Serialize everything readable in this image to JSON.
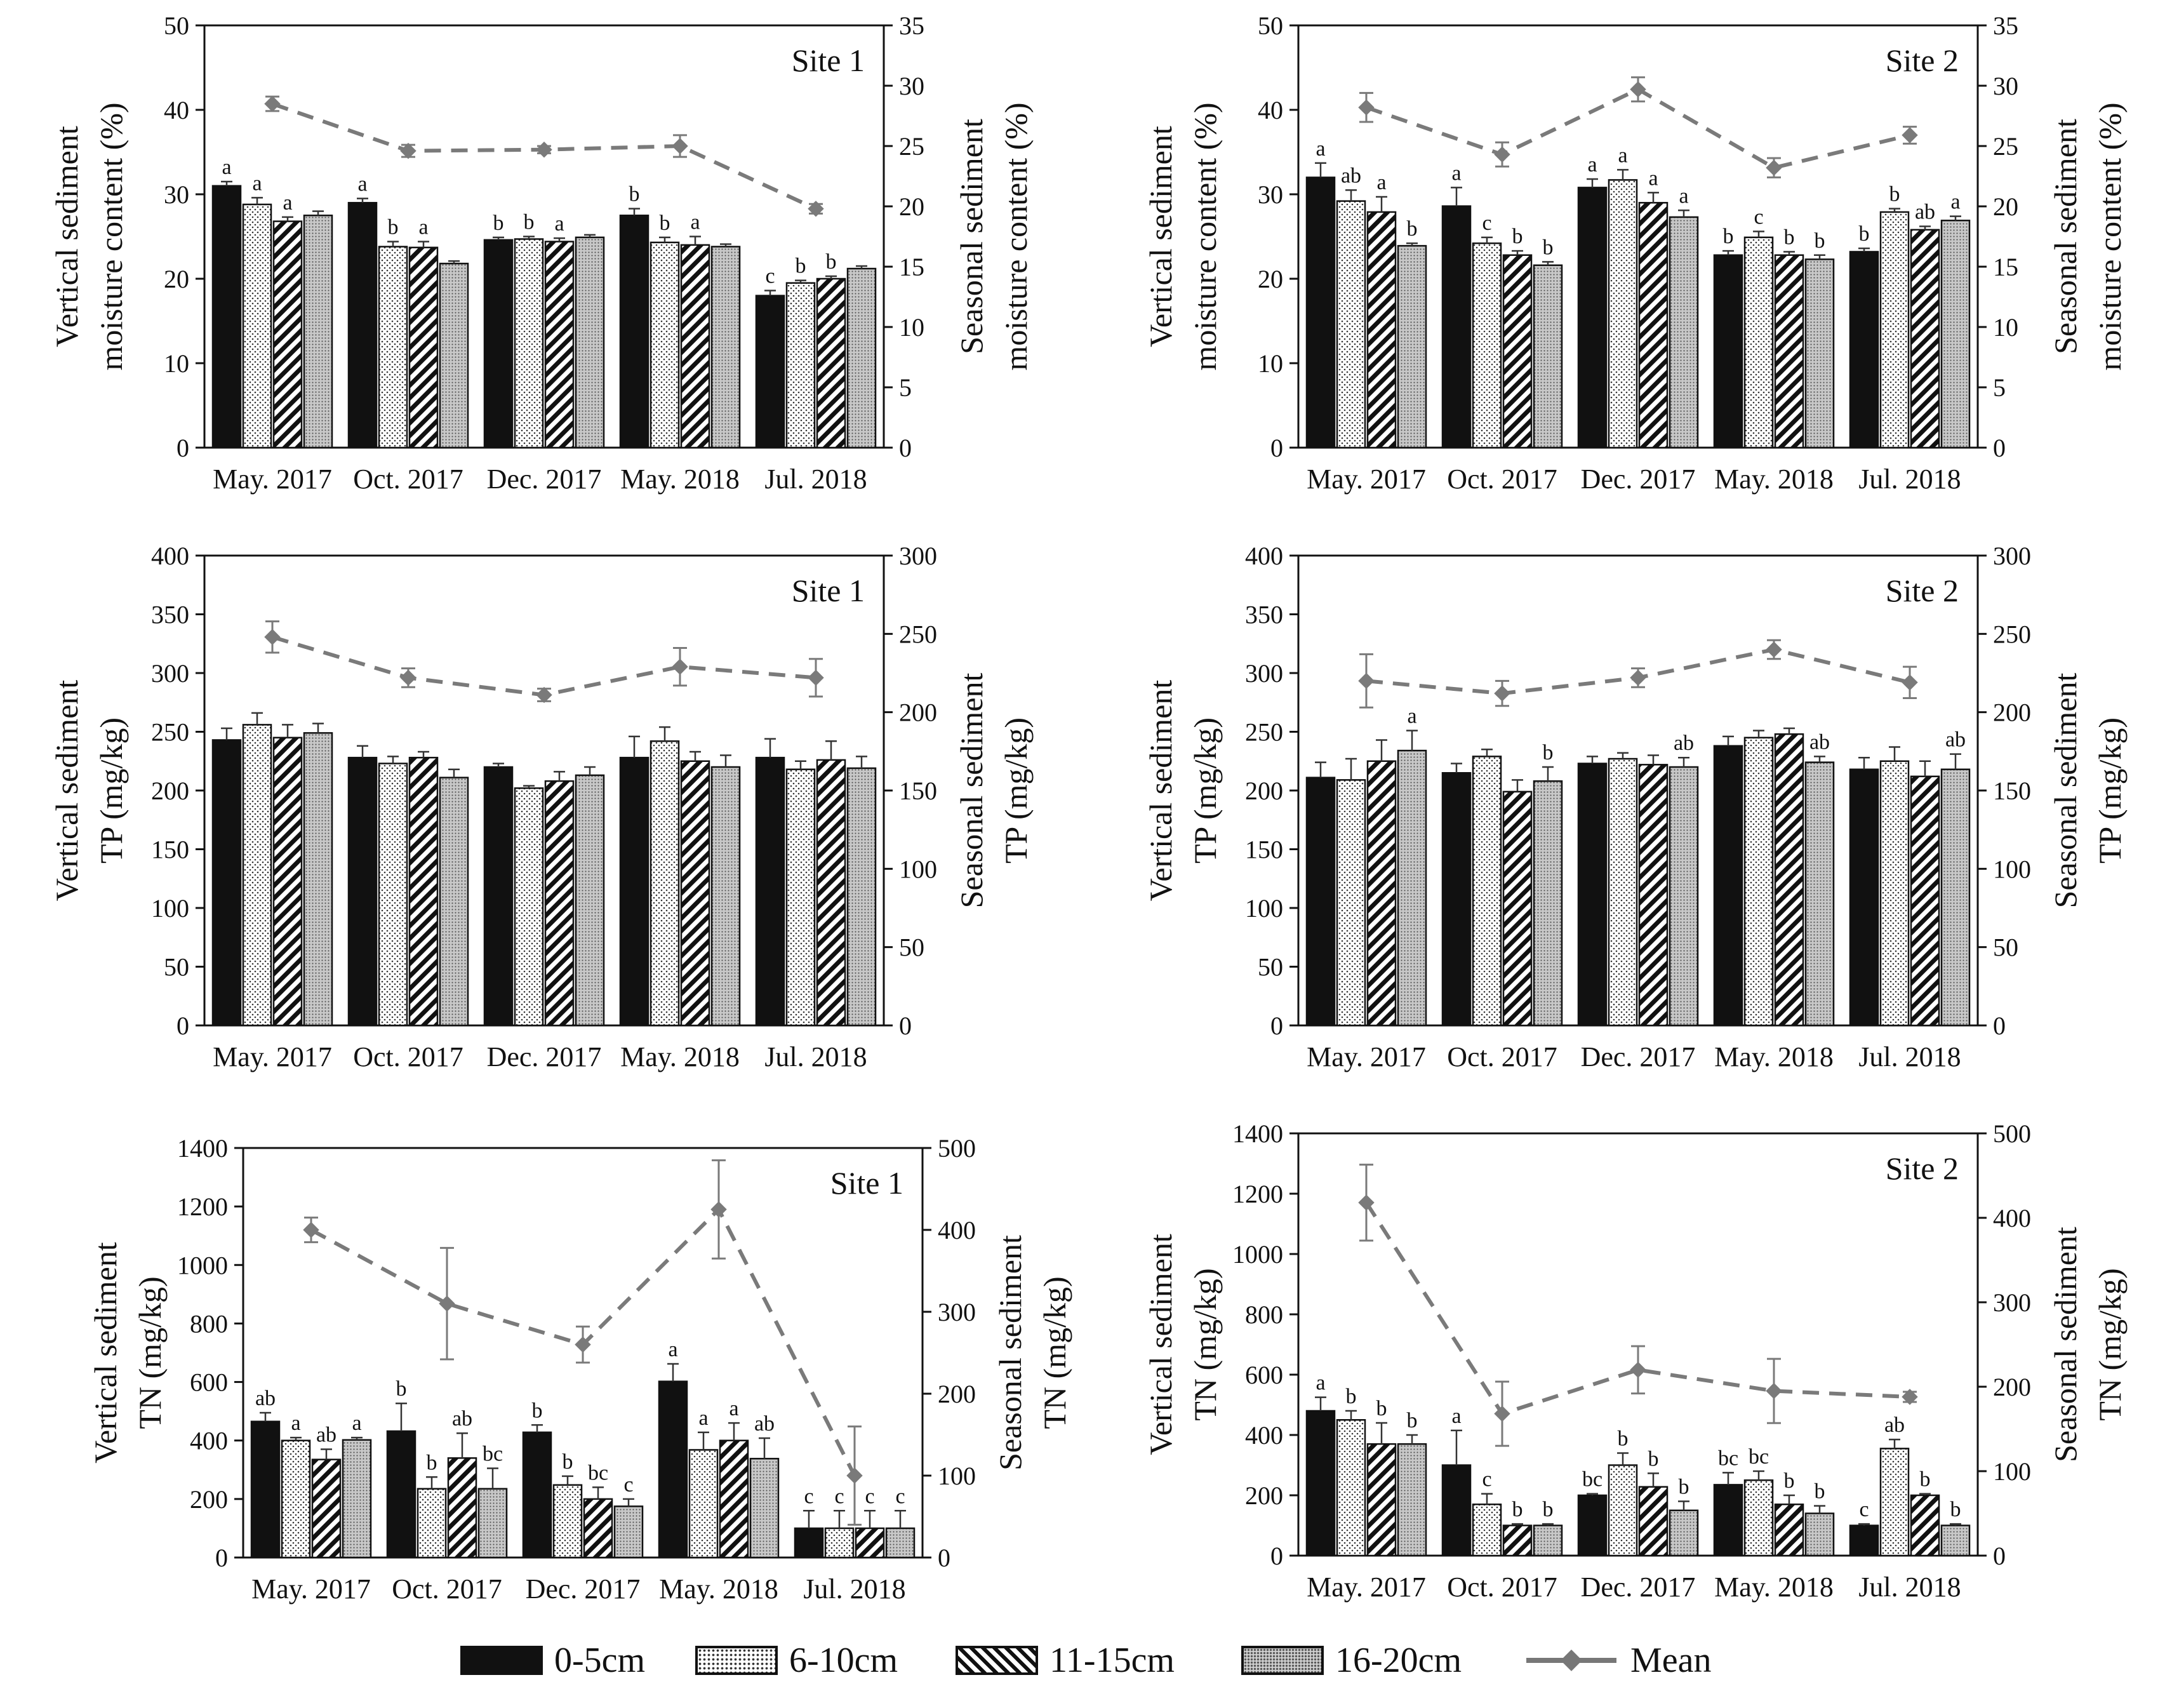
{
  "legend": {
    "items": [
      {
        "label": "0-5cm",
        "style": "solid"
      },
      {
        "label": "6-10cm",
        "style": "dot"
      },
      {
        "label": "11-15cm",
        "style": "hatch"
      },
      {
        "label": "16-20cm",
        "style": "grid"
      },
      {
        "label": "Mean",
        "style": "line"
      }
    ]
  },
  "chart_data": [
    {
      "id": "moisture-site1",
      "type": "bar",
      "title": "Site 1",
      "ylabel": [
        "Vertical sediment",
        "moisture content (%)"
      ],
      "y2label": [
        "Seasonal sediment",
        "moisture content (%)"
      ],
      "ylim": [
        0,
        50
      ],
      "yticks": [
        0,
        10,
        20,
        30,
        40,
        50
      ],
      "y2lim": [
        0,
        35
      ],
      "y2ticks": [
        0,
        5,
        10,
        15,
        20,
        25,
        30,
        35
      ],
      "categories": [
        "May. 2017",
        "Oct. 2017",
        "Dec. 2017",
        "May. 2018",
        "Jul. 2018"
      ],
      "series": [
        {
          "name": "0-5cm",
          "values": [
            31,
            29,
            24.6,
            27.5,
            18
          ],
          "errors": [
            0.5,
            0.5,
            0.3,
            0.8,
            0.6
          ],
          "letters": [
            "a",
            "a",
            "b",
            "b",
            "c"
          ]
        },
        {
          "name": "6-10cm",
          "values": [
            28.8,
            23.8,
            24.7,
            24.3,
            19.5
          ],
          "errors": [
            0.8,
            0.6,
            0.3,
            0.6,
            0.3
          ],
          "letters": [
            "a",
            "b",
            "b",
            "b",
            "b"
          ]
        },
        {
          "name": "11-15cm",
          "values": [
            26.8,
            23.7,
            24.4,
            24,
            20
          ],
          "errors": [
            0.5,
            0.7,
            0.4,
            1,
            0.3
          ],
          "letters": [
            "a",
            "a",
            "a",
            "a",
            "b"
          ]
        },
        {
          "name": "16-20cm",
          "values": [
            27.5,
            21.8,
            24.9,
            23.8,
            21.2
          ],
          "errors": [
            0.5,
            0.3,
            0.3,
            0.3,
            0.3
          ],
          "letters": [
            "",
            "",
            "",
            "",
            ""
          ]
        }
      ],
      "mean": {
        "values": [
          28.5,
          24.6,
          24.7,
          25,
          19.8
        ],
        "errors": [
          0.6,
          0.5,
          0.3,
          0.9,
          0.4
        ]
      }
    },
    {
      "id": "moisture-site2",
      "type": "bar",
      "title": "Site 2",
      "ylabel": [
        "Vertical sediment",
        "moisture content (%)"
      ],
      "y2label": [
        "Seasonal sediment",
        "moisture content (%)"
      ],
      "ylim": [
        0,
        50
      ],
      "yticks": [
        0,
        10,
        20,
        30,
        40,
        50
      ],
      "y2lim": [
        0,
        35
      ],
      "y2ticks": [
        0,
        5,
        10,
        15,
        20,
        25,
        30,
        35
      ],
      "categories": [
        "May. 2017",
        "Oct. 2017",
        "Dec. 2017",
        "May. 2018",
        "Jul. 2018"
      ],
      "series": [
        {
          "name": "0-5cm",
          "values": [
            32,
            28.6,
            30.8,
            22.8,
            23.2
          ],
          "errors": [
            1.7,
            2.2,
            1,
            0.5,
            0.4
          ],
          "letters": [
            "a",
            "a",
            "a",
            "b",
            "b"
          ]
        },
        {
          "name": "6-10cm",
          "values": [
            29.2,
            24.2,
            31.7,
            24.9,
            27.9
          ],
          "errors": [
            1.3,
            0.7,
            1.2,
            0.7,
            0.4
          ],
          "letters": [
            "ab",
            "c",
            "a",
            "c",
            "b"
          ]
        },
        {
          "name": "11-15cm",
          "values": [
            27.9,
            22.8,
            29,
            22.8,
            25.8
          ],
          "errors": [
            1.8,
            0.5,
            1.2,
            0.4,
            0.4
          ],
          "letters": [
            "a",
            "b",
            "a",
            "b",
            "ab"
          ]
        },
        {
          "name": "16-20cm",
          "values": [
            23.9,
            21.6,
            27.3,
            22.3,
            26.9
          ],
          "errors": [
            0.3,
            0.4,
            0.8,
            0.5,
            0.5
          ],
          "letters": [
            "b",
            "b",
            "a",
            "b",
            "a"
          ]
        }
      ],
      "mean": {
        "values": [
          28.2,
          24.3,
          29.7,
          23.2,
          25.9
        ],
        "errors": [
          1.2,
          1,
          1,
          0.8,
          0.7
        ]
      }
    },
    {
      "id": "tp-site1",
      "type": "bar",
      "title": "Site 1",
      "ylabel": [
        "Vertical sediment",
        "TP (mg/kg)"
      ],
      "y2label": [
        "Seasonal sediment",
        "TP (mg/kg)"
      ],
      "ylim": [
        0,
        400
      ],
      "yticks": [
        0,
        50,
        100,
        150,
        200,
        250,
        300,
        350,
        400
      ],
      "y2lim": [
        0,
        300
      ],
      "y2ticks": [
        0,
        50,
        100,
        150,
        200,
        250,
        300
      ],
      "categories": [
        "May. 2017",
        "Oct. 2017",
        "Dec. 2017",
        "May. 2018",
        "Jul. 2018"
      ],
      "series": [
        {
          "name": "0-5cm",
          "values": [
            243,
            228,
            220,
            228,
            228
          ],
          "errors": [
            10,
            10,
            3,
            18,
            16
          ],
          "letters": [
            "",
            "",
            "",
            "",
            ""
          ]
        },
        {
          "name": "6-10cm",
          "values": [
            256,
            223,
            202,
            242,
            218
          ],
          "errors": [
            10,
            6,
            2,
            12,
            7
          ],
          "letters": [
            "",
            "",
            "",
            "",
            ""
          ]
        },
        {
          "name": "11-15cm",
          "values": [
            245,
            228,
            208,
            225,
            226
          ],
          "errors": [
            11,
            5,
            8,
            8,
            16
          ],
          "letters": [
            "",
            "",
            "",
            "",
            ""
          ]
        },
        {
          "name": "16-20cm",
          "values": [
            249,
            211,
            213,
            220,
            219
          ],
          "errors": [
            8,
            7,
            7,
            10,
            10
          ],
          "letters": [
            "",
            "",
            "",
            "",
            ""
          ]
        }
      ],
      "mean": {
        "values": [
          248,
          222,
          211,
          229,
          222
        ],
        "errors": [
          10,
          6,
          4,
          12,
          12
        ]
      }
    },
    {
      "id": "tp-site2",
      "type": "bar",
      "title": "Site 2",
      "ylabel": [
        "Vertical sediment",
        "TP (mg/kg)"
      ],
      "y2label": [
        "Seasonal sediment",
        "TP (mg/kg)"
      ],
      "ylim": [
        0,
        400
      ],
      "yticks": [
        0,
        50,
        100,
        150,
        200,
        250,
        300,
        350,
        400
      ],
      "y2lim": [
        0,
        300
      ],
      "y2ticks": [
        0,
        50,
        100,
        150,
        200,
        250,
        300
      ],
      "categories": [
        "May. 2017",
        "Oct. 2017",
        "Dec. 2017",
        "May. 2018",
        "Jul. 2018"
      ],
      "series": [
        {
          "name": "0-5cm",
          "values": [
            211,
            215,
            223,
            238,
            218
          ],
          "errors": [
            13,
            8,
            6,
            8,
            10
          ],
          "letters": [
            "",
            "",
            "",
            "",
            ""
          ]
        },
        {
          "name": "6-10cm",
          "values": [
            209,
            229,
            227,
            245,
            225
          ],
          "errors": [
            18,
            6,
            5,
            6,
            12
          ],
          "letters": [
            "",
            "",
            "",
            "",
            ""
          ]
        },
        {
          "name": "11-15cm",
          "values": [
            225,
            199,
            222,
            248,
            212
          ],
          "errors": [
            18,
            10,
            8,
            5,
            13
          ],
          "letters": [
            "",
            "",
            "",
            "",
            ""
          ]
        },
        {
          "name": "16-20cm",
          "values": [
            234,
            208,
            220,
            224,
            218
          ],
          "errors": [
            17,
            12,
            8,
            5,
            13
          ],
          "letters": [
            "a",
            "b",
            "ab",
            "ab",
            "ab"
          ]
        }
      ],
      "mean": {
        "values": [
          220,
          212,
          222,
          240,
          219
        ],
        "errors": [
          17,
          8,
          6,
          6,
          10
        ]
      }
    },
    {
      "id": "tn-site1",
      "type": "bar",
      "title": "Site 1",
      "ylabel": [
        "Vertical sediment",
        "TN (mg/kg)"
      ],
      "y2label": [
        "Seasonal sediment",
        "TN (mg/kg)"
      ],
      "ylim": [
        0,
        1400
      ],
      "yticks": [
        0,
        200,
        400,
        600,
        800,
        1000,
        1200,
        1400
      ],
      "y2lim": [
        0,
        500
      ],
      "y2ticks": [
        0,
        100,
        200,
        300,
        400,
        500
      ],
      "categories": [
        "May. 2017",
        "Oct. 2017",
        "Dec. 2017",
        "May. 2018",
        "Jul. 2018"
      ],
      "series": [
        {
          "name": "0-5cm",
          "values": [
            465,
            432,
            428,
            602,
            100
          ],
          "errors": [
            30,
            95,
            25,
            60,
            60
          ],
          "letters": [
            "ab",
            "b",
            "b",
            "a",
            "c"
          ]
        },
        {
          "name": "6-10cm",
          "values": [
            400,
            235,
            248,
            368,
            100
          ],
          "errors": [
            10,
            40,
            30,
            60,
            60
          ],
          "letters": [
            "a",
            "b",
            "b",
            "a",
            "c"
          ]
        },
        {
          "name": "11-15cm",
          "values": [
            335,
            340,
            200,
            400,
            100
          ],
          "errors": [
            35,
            85,
            40,
            60,
            60
          ],
          "letters": [
            "ab",
            "ab",
            "bc",
            "a",
            "c"
          ]
        },
        {
          "name": "16-20cm",
          "values": [
            402,
            235,
            175,
            338,
            100
          ],
          "errors": [
            8,
            70,
            25,
            70,
            60
          ],
          "letters": [
            "a",
            "bc",
            "c",
            "ab",
            "c"
          ]
        }
      ],
      "mean": {
        "values": [
          400,
          310,
          260,
          425,
          100
        ],
        "errors": [
          15,
          68,
          22,
          60,
          60
        ]
      }
    },
    {
      "id": "tn-site2",
      "type": "bar",
      "title": "Site 2",
      "ylabel": [
        "Vertical sediment",
        "TN (mg/kg)"
      ],
      "y2label": [
        "Seasonal sediment",
        "TN (mg/kg)"
      ],
      "ylim": [
        0,
        1400
      ],
      "yticks": [
        0,
        200,
        400,
        600,
        800,
        1000,
        1200,
        1400
      ],
      "y2lim": [
        0,
        500
      ],
      "y2ticks": [
        0,
        100,
        200,
        300,
        400,
        500
      ],
      "categories": [
        "May. 2017",
        "Oct. 2017",
        "Dec. 2017",
        "May. 2018",
        "Jul. 2018"
      ],
      "series": [
        {
          "name": "0-5cm",
          "values": [
            480,
            300,
            200,
            235,
            100
          ],
          "errors": [
            45,
            115,
            5,
            40,
            5
          ],
          "letters": [
            "a",
            "a",
            "bc",
            "bc",
            "c"
          ]
        },
        {
          "name": "6-10cm",
          "values": [
            450,
            170,
            300,
            250,
            355
          ],
          "errors": [
            30,
            35,
            40,
            30,
            30
          ],
          "letters": [
            "b",
            "c",
            "b",
            "bc",
            "ab"
          ]
        },
        {
          "name": "11-15cm",
          "values": [
            370,
            100,
            228,
            170,
            200
          ],
          "errors": [
            70,
            5,
            45,
            30,
            5
          ],
          "letters": [
            "b",
            "b",
            "b",
            "b",
            "b"
          ]
        },
        {
          "name": "16-20cm",
          "values": [
            370,
            100,
            150,
            140,
            100
          ],
          "errors": [
            30,
            5,
            30,
            25,
            5
          ],
          "letters": [
            "b",
            "b",
            "b",
            "b",
            "b"
          ]
        }
      ],
      "mean": {
        "values": [
          418,
          168,
          220,
          195,
          188
        ],
        "errors": [
          45,
          38,
          28,
          38,
          6
        ]
      }
    }
  ]
}
